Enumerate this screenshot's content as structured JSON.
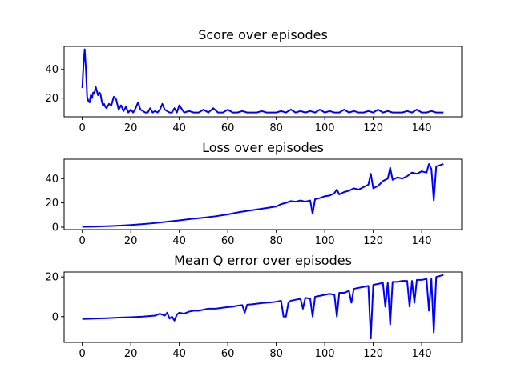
{
  "chart_data": [
    {
      "type": "line",
      "title": "Score over episodes",
      "xlabel": "",
      "ylabel": "",
      "xlim": [
        -7.5,
        156.5
      ],
      "ylim": [
        7,
        56
      ],
      "xticks": [
        0,
        20,
        40,
        60,
        80,
        100,
        120,
        140
      ],
      "yticks": [
        20,
        40
      ],
      "grid": false,
      "color": "#0000ff",
      "series": [
        {
          "x": [
            0,
            0.5,
            1,
            1.5,
            2,
            2.5,
            3,
            3.5,
            4,
            4.5,
            5,
            5.5,
            6,
            6.5,
            7,
            7.5,
            8,
            8.5,
            9,
            9.5,
            10,
            11,
            12,
            13,
            14,
            15,
            16,
            17,
            18,
            19,
            20,
            21,
            22,
            23,
            24,
            25,
            26,
            27,
            28,
            29,
            30,
            31,
            32,
            33,
            34,
            35,
            36,
            37,
            38,
            39,
            40,
            42,
            44,
            46,
            48,
            50,
            52,
            54,
            56,
            58,
            60,
            62,
            64,
            66,
            68,
            70,
            72,
            74,
            76,
            78,
            80,
            82,
            84,
            86,
            88,
            90,
            92,
            94,
            96,
            98,
            100,
            102,
            104,
            106,
            108,
            110,
            112,
            114,
            116,
            118,
            120,
            122,
            124,
            126,
            128,
            130,
            132,
            134,
            136,
            138,
            140,
            142,
            144,
            146,
            149
          ],
          "values": [
            27,
            44,
            54,
            40,
            21,
            18,
            17,
            22,
            20,
            24,
            23,
            28,
            25,
            22,
            24,
            23,
            18,
            15,
            16,
            14,
            13,
            16,
            15,
            21,
            19,
            12,
            15,
            11,
            14,
            10,
            12,
            10,
            13,
            17,
            12,
            11,
            10,
            10,
            13,
            10,
            11,
            10,
            12,
            16,
            12,
            11,
            10,
            10,
            13,
            10,
            15,
            10,
            11,
            10,
            10,
            12,
            10,
            13,
            10,
            10,
            12,
            10,
            10,
            11,
            10,
            10,
            10,
            11,
            10,
            10,
            10,
            11,
            10,
            12,
            10,
            11,
            10,
            11,
            10,
            12,
            10,
            11,
            10,
            10,
            12,
            10,
            11,
            10,
            10,
            11,
            10,
            12,
            10,
            11,
            10,
            10,
            10,
            11,
            10,
            12,
            10,
            10,
            11,
            10,
            10
          ]
        }
      ]
    },
    {
      "type": "line",
      "title": "Loss over episodes",
      "xlabel": "",
      "ylabel": "",
      "xlim": [
        -7.5,
        156.5
      ],
      "ylim": [
        -2,
        56
      ],
      "xticks": [
        0,
        20,
        40,
        60,
        80,
        100,
        120,
        140
      ],
      "yticks": [
        0,
        20,
        40
      ],
      "grid": false,
      "color": "#0000ff",
      "series": [
        {
          "x": [
            0,
            5,
            10,
            15,
            20,
            25,
            30,
            35,
            40,
            45,
            50,
            55,
            60,
            65,
            70,
            75,
            80,
            82,
            84,
            86,
            88,
            90,
            92,
            94,
            95,
            96,
            98,
            100,
            102,
            104,
            105,
            106,
            108,
            110,
            112,
            114,
            116,
            118,
            119,
            120,
            122,
            124,
            126,
            127,
            128,
            130,
            132,
            134,
            136,
            138,
            140,
            142,
            143,
            144,
            145,
            146,
            149
          ],
          "values": [
            0.3,
            0.5,
            0.8,
            1.2,
            1.8,
            2.5,
            3.4,
            4.5,
            5.6,
            6.8,
            7.8,
            9,
            10.5,
            12.5,
            14,
            15.5,
            17,
            19,
            20,
            21.5,
            21,
            22,
            21,
            22,
            11,
            23,
            24,
            25.5,
            26,
            28,
            31,
            27,
            29,
            30,
            32,
            31,
            33,
            35,
            44,
            32,
            34,
            38,
            40,
            49,
            39,
            41,
            40,
            42,
            45,
            44,
            46,
            45,
            52,
            48,
            22,
            50,
            52
          ]
        }
      ]
    },
    {
      "type": "line",
      "title": "Mean Q error over episodes",
      "xlabel": "",
      "ylabel": "",
      "xlim": [
        -7.5,
        156.5
      ],
      "ylim": [
        -13,
        22.5
      ],
      "xticks": [
        0,
        20,
        40,
        60,
        80,
        100,
        120,
        140
      ],
      "yticks": [
        0,
        20
      ],
      "grid": false,
      "color": "#0000ff",
      "series": [
        {
          "x": [
            0,
            5,
            10,
            15,
            20,
            25,
            30,
            32,
            34,
            35,
            36,
            37,
            38,
            39,
            40,
            42,
            44,
            46,
            48,
            50,
            52,
            55,
            58,
            60,
            62,
            64,
            66,
            67,
            68,
            70,
            72,
            74,
            76,
            78,
            80,
            82,
            83,
            84,
            85,
            86,
            88,
            90,
            91,
            92,
            94,
            95,
            96,
            98,
            100,
            102,
            104,
            105,
            106,
            108,
            110,
            111,
            112,
            114,
            116,
            118,
            119,
            120,
            122,
            124,
            125,
            126,
            127,
            128,
            130,
            132,
            134,
            135,
            136,
            137,
            138,
            140,
            142,
            143,
            144,
            145,
            146,
            149
          ],
          "values": [
            -1.2,
            -1,
            -0.8,
            -0.5,
            -0.3,
            0,
            0.5,
            1.5,
            0.5,
            2,
            -1,
            0,
            -2,
            1,
            2,
            1.5,
            2.5,
            3,
            3,
            3.5,
            4,
            4,
            4.5,
            4.8,
            5,
            5.5,
            5.8,
            2,
            6,
            6.2,
            6.5,
            6.8,
            7,
            7.2,
            7.5,
            8,
            0,
            0,
            7,
            8,
            8.5,
            9,
            4,
            9.5,
            9,
            0,
            10,
            10.5,
            11,
            11.5,
            11,
            0,
            12,
            12,
            13,
            7,
            14,
            14.5,
            15,
            15.5,
            -11,
            16,
            16.5,
            17,
            5,
            17,
            -4,
            17.5,
            17.5,
            18,
            18,
            5,
            18,
            7,
            18.5,
            18.5,
            19,
            3,
            19,
            -8,
            20,
            21
          ]
        }
      ]
    }
  ]
}
